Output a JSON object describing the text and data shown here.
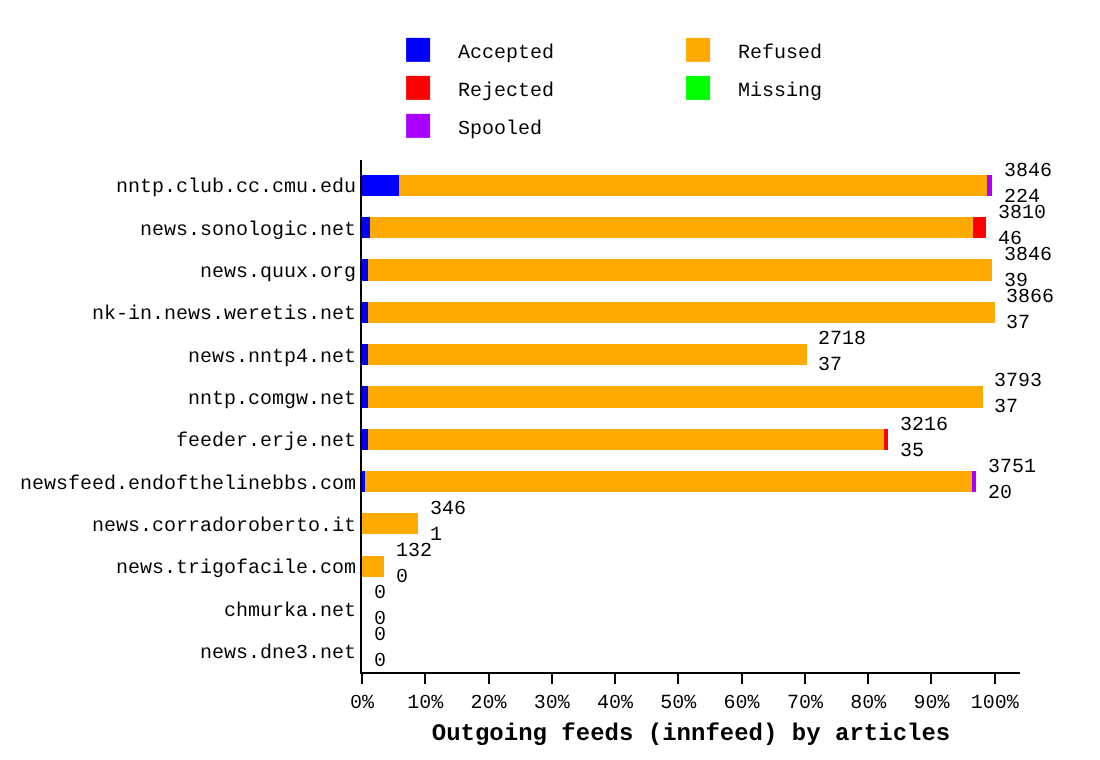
{
  "chart_data": {
    "type": "bar",
    "orientation": "horizontal",
    "stacked": true,
    "xlabel": "Outgoing feeds (innfeed) by articles",
    "categories": [
      "nntp.club.cc.cmu.edu",
      "news.sonologic.net",
      "news.quux.org",
      "nk-in.news.weretis.net",
      "news.nntp4.net",
      "nntp.comgw.net",
      "feeder.erje.net",
      "newsfeed.endofthelinebbs.com",
      "news.corradoroberto.it",
      "news.trigofacile.com",
      "chmurka.net",
      "news.dne3.net"
    ],
    "series": [
      {
        "name": "Accepted",
        "color": "#0000ff",
        "values": [
          5.8,
          1.2,
          1.0,
          1.0,
          1.0,
          1.0,
          0.9,
          0.5,
          0,
          0,
          0,
          0
        ]
      },
      {
        "name": "Refused",
        "color": "#ffaa00",
        "values": [
          93.0,
          95.4,
          98.5,
          99.0,
          69.3,
          97.1,
          81.8,
          96.0,
          8.9,
          3.4,
          0,
          0
        ]
      },
      {
        "name": "Rejected",
        "color": "#ff0000",
        "values": [
          0,
          2.0,
          0,
          0,
          0,
          0,
          0.5,
          0,
          0,
          0,
          0,
          0
        ]
      },
      {
        "name": "Missing",
        "color": "#00ff00",
        "values": [
          0,
          0,
          0,
          0,
          0,
          0,
          0,
          0,
          0,
          0,
          0,
          0
        ]
      },
      {
        "name": "Spooled",
        "color": "#aa00ff",
        "values": [
          0.7,
          0,
          0,
          0,
          0,
          0,
          0,
          0.5,
          0,
          0,
          0,
          0
        ]
      }
    ],
    "annotations": [
      {
        "text": "3846\n224",
        "x": 99.5,
        "y": "nntp.club.cc.cmu.edu"
      },
      {
        "text": "3810\n46",
        "x": 98.6,
        "y": "news.sonologic.net"
      },
      {
        "text": "3846\n39",
        "x": 99.5,
        "y": "news.quux.org"
      },
      {
        "text": "3866\n37",
        "x": 100,
        "y": "nk-in.news.weretis.net"
      },
      {
        "text": "2718\n37",
        "x": 70.3,
        "y": "news.nntp4.net"
      },
      {
        "text": "3793\n37",
        "x": 98.1,
        "y": "nntp.comgw.net"
      },
      {
        "text": "3216\n35",
        "x": 83.2,
        "y": "feeder.erje.net"
      },
      {
        "text": "3751\n20",
        "x": 97.0,
        "y": "newsfeed.endofthelinebbs.com"
      },
      {
        "text": "346\n1",
        "x": 8.9,
        "y": "news.corradoroberto.it"
      },
      {
        "text": "132\n0",
        "x": 3.4,
        "y": "news.trigofacile.com"
      },
      {
        "text": "0\n0",
        "x": 0,
        "y": "chmurka.net"
      },
      {
        "text": "0\n0",
        "x": 0,
        "y": "news.dne3.net"
      }
    ],
    "xlim": [
      0,
      104
    ],
    "xticks": [
      {
        "value": 0,
        "label": "0%"
      },
      {
        "value": 10,
        "label": "10%"
      },
      {
        "value": 20,
        "label": "20%"
      },
      {
        "value": 30,
        "label": "30%"
      },
      {
        "value": 40,
        "label": "40%"
      },
      {
        "value": 50,
        "label": "50%"
      },
      {
        "value": 60,
        "label": "60%"
      },
      {
        "value": 70,
        "label": "70%"
      },
      {
        "value": 80,
        "label": "80%"
      },
      {
        "value": 90,
        "label": "90%"
      },
      {
        "value": 100,
        "label": "100%"
      }
    ],
    "legend": "top"
  }
}
